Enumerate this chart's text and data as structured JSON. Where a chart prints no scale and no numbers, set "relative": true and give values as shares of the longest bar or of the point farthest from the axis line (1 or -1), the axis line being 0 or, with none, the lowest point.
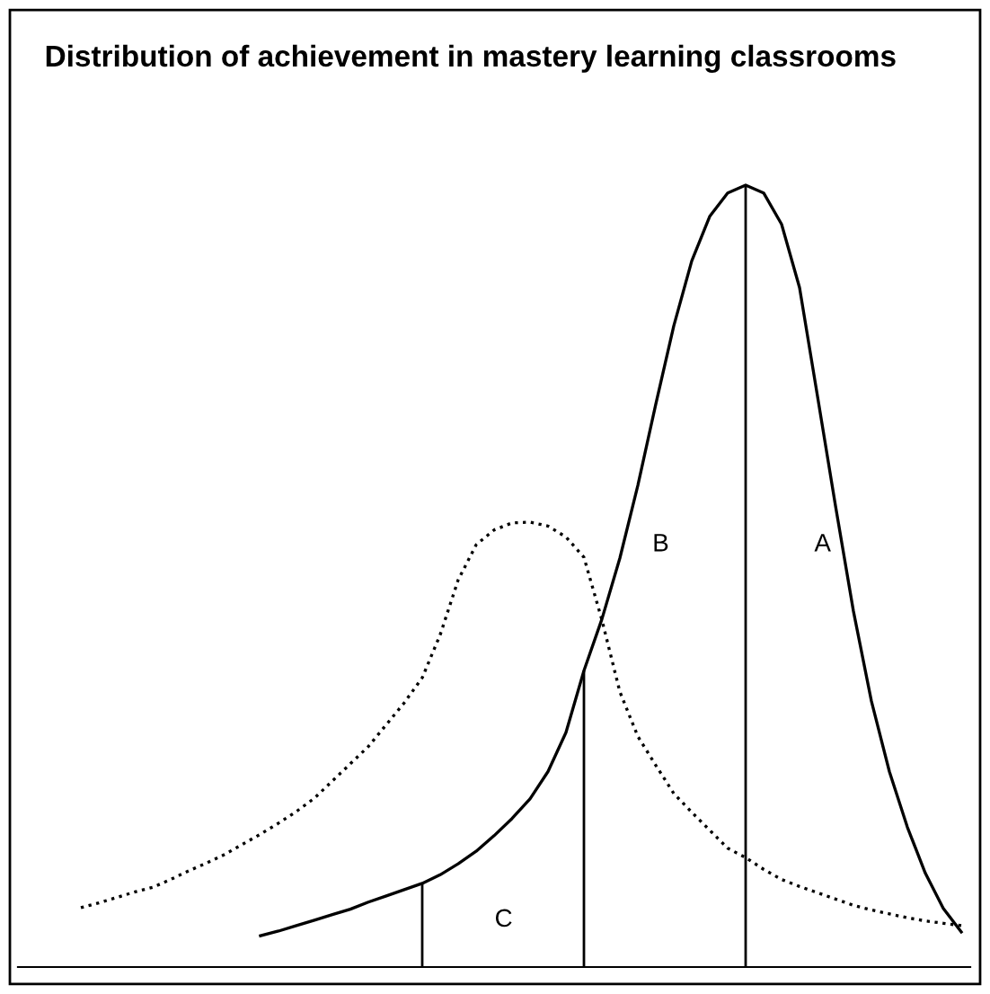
{
  "chart_data": {
    "type": "line",
    "title": "Distribution of achievement in mastery learning classrooms",
    "relative": true,
    "marker": "none",
    "categories": [
      null,
      null,
      null,
      null,
      null,
      null,
      null,
      null,
      null,
      null,
      null,
      null,
      null,
      null,
      null,
      null,
      null,
      null,
      null,
      null,
      null,
      null,
      null,
      null,
      null,
      null,
      null,
      null,
      null,
      null,
      null,
      null,
      null,
      null,
      null,
      null,
      null,
      null,
      null,
      null,
      null,
      null,
      null,
      null,
      null,
      null,
      null,
      null,
      null,
      null
    ],
    "series": [
      {
        "color": "#000000",
        "line_style": "solid",
        "values": [
          null,
          null,
          null,
          null,
          null,
          null,
          null,
          null,
          null,
          null,
          0.04,
          0.046,
          0.053,
          0.06,
          0.067,
          0.074,
          0.083,
          0.091,
          0.099,
          0.107,
          0.118,
          0.132,
          0.148,
          0.168,
          0.19,
          0.215,
          0.25,
          0.3,
          0.379,
          0.445,
          0.523,
          0.616,
          0.72,
          0.82,
          0.903,
          0.96,
          0.99,
          1,
          0.99,
          0.95,
          0.869,
          0.73,
          0.59,
          0.455,
          0.34,
          0.25,
          0.179,
          0.12,
          0.075,
          0.045
        ]
      },
      {
        "color": "#000000",
        "line_style": "dotted",
        "values": [
          0.076,
          0.082,
          0.089,
          0.096,
          0.102,
          0.112,
          0.123,
          0.133,
          0.144,
          0.157,
          0.17,
          0.184,
          0.199,
          0.216,
          0.238,
          0.26,
          0.282,
          0.31,
          0.338,
          0.37,
          0.425,
          0.495,
          0.54,
          0.559,
          0.568,
          0.569,
          0.564,
          0.55,
          0.524,
          0.444,
          0.352,
          0.295,
          0.258,
          0.222,
          0.198,
          0.175,
          0.152,
          0.14,
          0.125,
          0.112,
          0.103,
          0.095,
          0.087,
          0.079,
          0.073,
          0.068,
          0.063,
          0.059,
          0.056,
          0.053
        ]
      }
    ],
    "annotations": [
      "C",
      "B",
      "A"
    ]
  }
}
